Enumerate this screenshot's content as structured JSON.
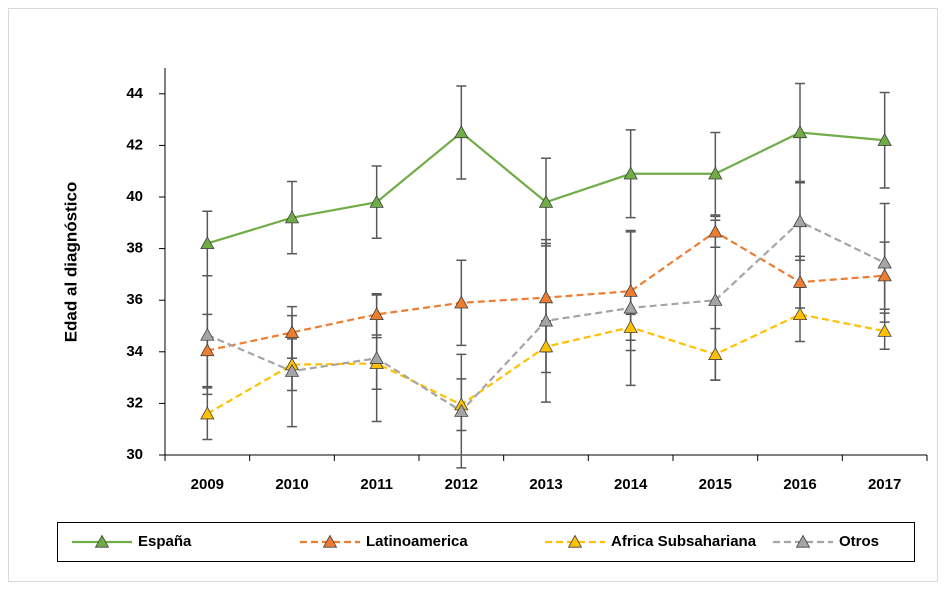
{
  "chart_data": {
    "type": "line",
    "y_axis_label": "Edad al diagnóstico",
    "categories": [
      "2009",
      "2010",
      "2011",
      "2012",
      "2013",
      "2014",
      "2015",
      "2016",
      "2017"
    ],
    "ylim": [
      30,
      45
    ],
    "yticks": [
      30,
      32,
      34,
      36,
      38,
      40,
      42,
      44
    ],
    "legend_position": "bottom",
    "series": [
      {
        "name": "España",
        "color": "#70ad47",
        "dashed": false,
        "values": [
          38.2,
          39.2,
          39.8,
          42.5,
          39.8,
          40.9,
          40.9,
          42.5,
          42.2
        ],
        "errors": [
          1.25,
          1.4,
          1.4,
          1.8,
          1.7,
          1.7,
          1.6,
          1.9,
          1.85
        ]
      },
      {
        "name": "Latinoamerica",
        "color": "#ed7d31",
        "dashed": true,
        "values": [
          34.05,
          34.75,
          35.45,
          35.9,
          36.1,
          36.35,
          38.65,
          36.7,
          36.95
        ],
        "errors": [
          1.4,
          1.0,
          0.8,
          1.65,
          2.1,
          2.3,
          0.6,
          1.0,
          1.3
        ]
      },
      {
        "name": "Africa Subsahariana",
        "color": "#ffc000",
        "dashed": true,
        "values": [
          31.6,
          33.5,
          33.55,
          31.95,
          34.2,
          34.95,
          33.9,
          35.45,
          34.8
        ],
        "errors": [
          1.0,
          1.0,
          1.0,
          1.0,
          1.0,
          0.5,
          1.0,
          1.05,
          0.7
        ]
      },
      {
        "name": "Otros",
        "color": "#a5a5a5",
        "dashed": true,
        "values": [
          34.65,
          33.25,
          33.75,
          31.7,
          35.2,
          35.7,
          36.0,
          39.05,
          37.45
        ],
        "errors": [
          2.3,
          2.15,
          2.45,
          2.2,
          3.15,
          3.0,
          3.1,
          1.5,
          2.3
        ]
      }
    ]
  }
}
